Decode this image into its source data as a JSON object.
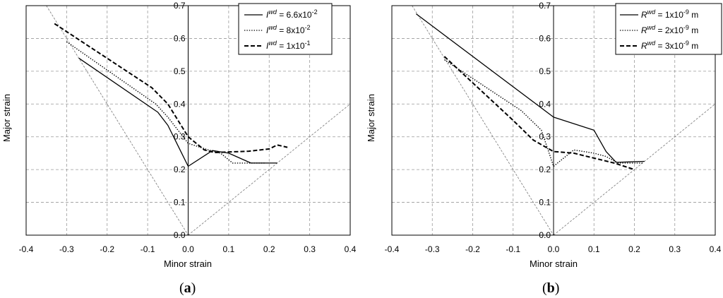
{
  "chart_data": [
    {
      "type": "line",
      "panel_label_open": "(",
      "panel_label_letter": "a",
      "panel_label_close": ")",
      "xlabel": "Minor strain",
      "ylabel": "Major strain",
      "xlim": [
        -0.4,
        0.4
      ],
      "ylim": [
        0.0,
        0.7
      ],
      "xticks": [
        "-0.4",
        "-0.3",
        "-0.2",
        "-0.1",
        "0.0",
        "0.1",
        "0.2",
        "0.3",
        "0.4"
      ],
      "yticks": [
        "0.0",
        "0.1",
        "0.2",
        "0.3",
        "0.4",
        "0.5",
        "0.6",
        "0.7"
      ],
      "grid": true,
      "legend_position": "top-right",
      "reference_lines": [
        {
          "x": [
            -0.4,
            0.0
          ],
          "y": [
            0.8,
            0.0
          ]
        },
        {
          "x": [
            0.0,
            0.4
          ],
          "y": [
            0.0,
            0.4
          ]
        }
      ],
      "series": [
        {
          "name_sym": "I",
          "name_sup": "wd",
          "name_rest": " = 6.6x10",
          "name_exp": "-2",
          "name_unit": "",
          "style": "solid",
          "x": [
            -0.27,
            -0.075,
            -0.05,
            0.0,
            0.06,
            0.1,
            0.155,
            0.22
          ],
          "y": [
            0.54,
            0.375,
            0.335,
            0.21,
            0.258,
            0.25,
            0.22,
            0.22
          ]
        },
        {
          "name_sym": "I",
          "name_sup": "wd",
          "name_rest": " = 8x10",
          "name_exp": "-2",
          "name_unit": "",
          "style": "dotted",
          "x": [
            -0.3,
            -0.08,
            -0.05,
            0.0,
            0.05,
            0.08,
            0.11,
            0.19
          ],
          "y": [
            0.59,
            0.4,
            0.36,
            0.28,
            0.26,
            0.25,
            0.22,
            0.22
          ]
        },
        {
          "name_sym": "I",
          "name_sup": "wd",
          "name_rest": " = 1x10",
          "name_exp": "-1",
          "name_unit": "",
          "style": "dashed",
          "x": [
            -0.33,
            -0.09,
            -0.05,
            0.0,
            0.04,
            0.065,
            0.15,
            0.2,
            0.22,
            0.245
          ],
          "y": [
            0.645,
            0.45,
            0.4,
            0.3,
            0.26,
            0.252,
            0.256,
            0.263,
            0.275,
            0.268
          ]
        }
      ]
    },
    {
      "type": "line",
      "panel_label_open": "(",
      "panel_label_letter": "b",
      "panel_label_close": ")",
      "xlabel": "Minor strain",
      "ylabel": "Major strain",
      "xlim": [
        -0.4,
        0.4
      ],
      "ylim": [
        0.0,
        0.7
      ],
      "xticks": [
        "-0.4",
        "-0.3",
        "-0.2",
        "-0.1",
        "0.0",
        "0.1",
        "0.2",
        "0.3",
        "0.4"
      ],
      "yticks": [
        "0.0",
        "0.1",
        "0.2",
        "0.3",
        "0.4",
        "0.5",
        "0.6",
        "0.7"
      ],
      "grid": true,
      "legend_position": "top-right",
      "reference_lines": [
        {
          "x": [
            -0.4,
            0.0
          ],
          "y": [
            0.8,
            0.0
          ]
        },
        {
          "x": [
            0.0,
            0.4
          ],
          "y": [
            0.0,
            0.4
          ]
        }
      ],
      "series": [
        {
          "name_sym": "R",
          "name_sup": "wd",
          "name_rest": " = 1x10",
          "name_exp": "-9",
          "name_unit": " m",
          "style": "solid",
          "x": [
            -0.34,
            0.0,
            0.1,
            0.13,
            0.155,
            0.225
          ],
          "y": [
            0.675,
            0.36,
            0.32,
            0.255,
            0.222,
            0.225
          ]
        },
        {
          "name_sym": "R",
          "name_sup": "wd",
          "name_rest": " = 2x10",
          "name_exp": "-9",
          "name_unit": " m",
          "style": "dotted",
          "x": [
            -0.27,
            -0.08,
            -0.03,
            0.0,
            0.05,
            0.1,
            0.13,
            0.16,
            0.22
          ],
          "y": [
            0.535,
            0.38,
            0.32,
            0.21,
            0.26,
            0.25,
            0.24,
            0.22,
            0.22
          ]
        },
        {
          "name_sym": "R",
          "name_sup": "wd",
          "name_rest": " = 3x10",
          "name_exp": "-9",
          "name_unit": " m",
          "style": "dashed",
          "x": [
            -0.27,
            -0.1,
            -0.05,
            0.0,
            0.05,
            0.1,
            0.15,
            0.2
          ],
          "y": [
            0.545,
            0.35,
            0.29,
            0.255,
            0.25,
            0.235,
            0.22,
            0.2
          ]
        }
      ]
    }
  ]
}
